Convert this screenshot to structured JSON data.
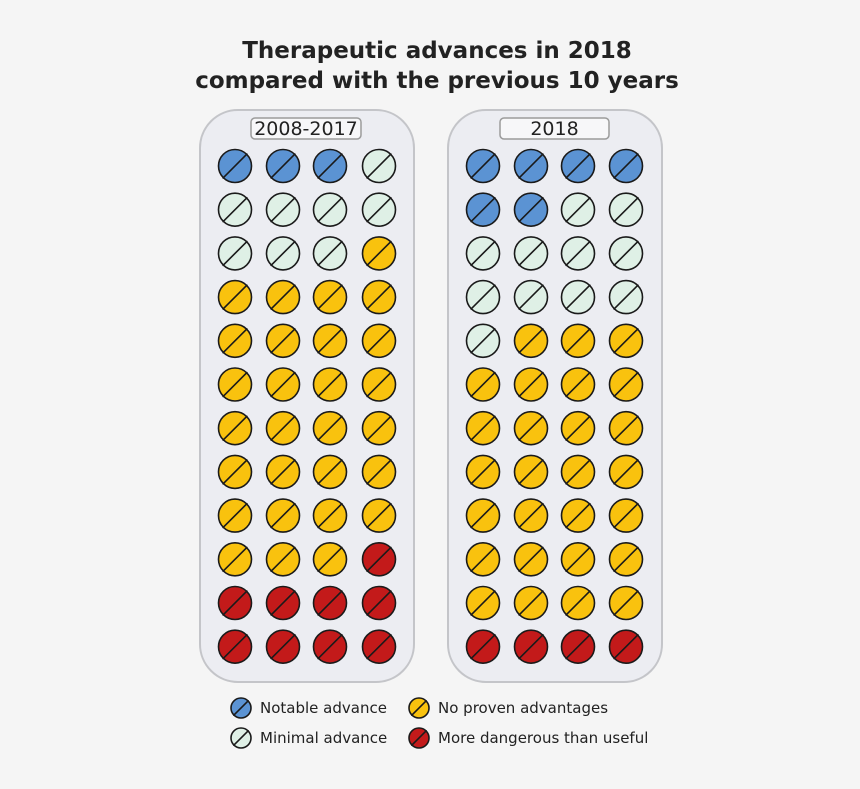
{
  "title_line1": "Therapeutic advances in 2018",
  "title_line2": "compared with the previous 10 years",
  "chart_data": {
    "type": "pictogram",
    "title": "Therapeutic advances in 2018 compared with the previous 10 years",
    "categories": [
      {
        "key": "notable",
        "name": "Notable advance",
        "color": "#5b93d3"
      },
      {
        "key": "minimal",
        "name": "Minimal advance",
        "color": "#dff0e6"
      },
      {
        "key": "no_proven",
        "name": "No proven advantages",
        "color": "#f9c20e"
      },
      {
        "key": "dangerous",
        "name": "More dangerous than useful",
        "color": "#c31a1a"
      }
    ],
    "panels": [
      {
        "label": "2008-2017",
        "counts": {
          "notable": 3,
          "minimal": 8,
          "no_proven": 28,
          "dangerous": 9
        }
      },
      {
        "label": "2018",
        "counts": {
          "notable": 6,
          "minimal": 11,
          "no_proven": 27,
          "dangerous": 4
        }
      }
    ],
    "grid": {
      "columns": 4,
      "rows": 12
    },
    "legend_order": [
      "notable",
      "no_proven",
      "minimal",
      "dangerous"
    ],
    "legend_position": "bottom"
  }
}
